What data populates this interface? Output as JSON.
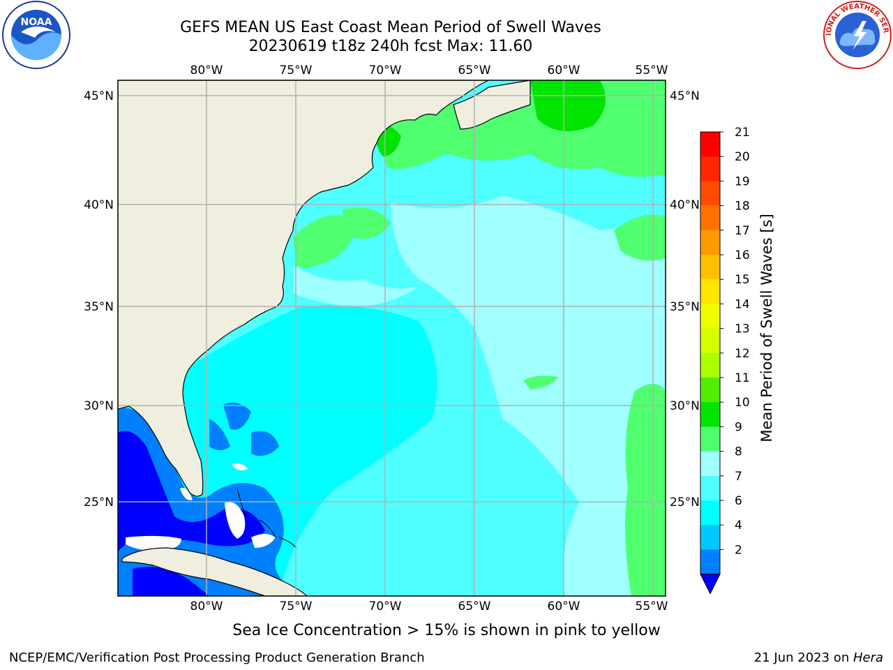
{
  "title": {
    "line1": "GEFS MEAN US East Coast Mean Period of Swell Waves",
    "line2": "20230619 t18z 240h fcst   Max: 11.60"
  },
  "logos": {
    "left": {
      "icon": "noaa-logo",
      "text": "NOAA"
    },
    "right": {
      "icon": "nws-logo",
      "text": "NATIONAL WEATHER SERVICE"
    }
  },
  "map": {
    "lon_labels": [
      "80°W",
      "75°W",
      "70°W",
      "65°W",
      "60°W",
      "55°W"
    ],
    "lat_labels": [
      "45°N",
      "40°N",
      "35°N",
      "30°N",
      "25°N"
    ],
    "colors": {
      "land": "#efeedf",
      "coast": "#000000",
      "grid": "#b0b0b0",
      "ocean_cyan": "#50ffff",
      "ocean_light": "#a0ffff",
      "ocean_mid": "#00e8ff",
      "green": "#50ff70",
      "blue": "#0000ff",
      "blue_light": "#0080ff"
    }
  },
  "colorbar": {
    "label": "Mean Period of Swell Waves [s]",
    "ticks": [
      "21",
      "20",
      "19",
      "18",
      "17",
      "16",
      "15",
      "14",
      "13",
      "12",
      "11",
      "10",
      "9",
      "8",
      "7",
      "6",
      "4",
      "2"
    ],
    "colors": [
      "#ff0000",
      "#ff2600",
      "#ff4c00",
      "#ff7200",
      "#ff9900",
      "#ffbf00",
      "#ffe500",
      "#f0ff00",
      "#d4ff00",
      "#aaff00",
      "#50ee00",
      "#00e400",
      "#50ff70",
      "#a0ffff",
      "#50ffff",
      "#00ffff",
      "#00c8ff",
      "#0080ff"
    ],
    "extend_color": "#0000ff"
  },
  "ice_note": "Sea Ice Concentration > 15% is shown in pink to yellow",
  "footer": {
    "left": "NCEP/EMC/Verification Post Processing Product Generation Branch",
    "right_prefix": "21 Jun 2023 on ",
    "right_host": "Hera"
  }
}
